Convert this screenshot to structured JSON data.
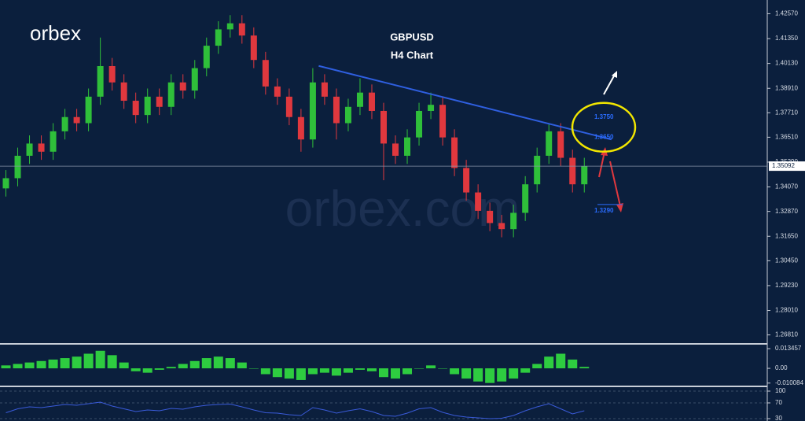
{
  "brand": "orbex",
  "watermark": "orbex.com",
  "chart_data": [
    {
      "type": "candlestick",
      "title": "GBPUSD",
      "subtitle": "H4 Chart",
      "up_color": "#2fbf3a",
      "down_color": "#e0383e",
      "xlim": [
        -0.5,
        64.5
      ],
      "ylim": [
        1.2637,
        1.4305
      ],
      "yticks": [
        {
          "value": 1.4257,
          "label": "1.42570"
        },
        {
          "value": 1.4135,
          "label": "1.41350"
        },
        {
          "value": 1.4013,
          "label": "1.40130"
        },
        {
          "value": 1.3891,
          "label": "1.38910"
        },
        {
          "value": 1.3771,
          "label": "1.37710"
        },
        {
          "value": 1.3651,
          "label": "1.36510"
        },
        {
          "value": 1.3529,
          "label": "1.35290"
        },
        {
          "value": 1.3407,
          "label": "1.34070"
        },
        {
          "value": 1.3287,
          "label": "1.32870"
        },
        {
          "value": 1.3165,
          "label": "1.31650"
        },
        {
          "value": 1.3045,
          "label": "1.30450"
        },
        {
          "value": 1.2923,
          "label": "1.29230"
        },
        {
          "value": 1.2801,
          "label": "1.28010"
        },
        {
          "value": 1.2681,
          "label": "1.26810"
        }
      ],
      "last_price": 1.35092,
      "open": [
        1.34,
        1.345,
        1.356,
        1.362,
        1.358,
        1.368,
        1.375,
        1.372,
        1.385,
        1.4,
        1.392,
        1.383,
        1.376,
        1.385,
        1.38,
        1.392,
        1.388,
        1.399,
        1.41,
        1.418,
        1.421,
        1.415,
        1.403,
        1.39,
        1.385,
        1.375,
        1.364,
        1.392,
        1.385,
        1.372,
        1.38,
        1.387,
        1.378,
        1.362,
        1.356,
        1.365,
        1.378,
        1.381,
        1.365,
        1.35,
        1.338,
        1.329,
        1.323,
        1.32,
        1.328,
        1.342,
        1.356,
        1.368,
        1.355,
        1.342
      ],
      "high": [
        1.349,
        1.36,
        1.366,
        1.366,
        1.372,
        1.379,
        1.379,
        1.389,
        1.414,
        1.404,
        1.396,
        1.387,
        1.389,
        1.389,
        1.396,
        1.396,
        1.403,
        1.414,
        1.422,
        1.425,
        1.425,
        1.419,
        1.407,
        1.394,
        1.389,
        1.379,
        1.399,
        1.396,
        1.389,
        1.384,
        1.394,
        1.391,
        1.382,
        1.366,
        1.369,
        1.382,
        1.387,
        1.385,
        1.369,
        1.354,
        1.342,
        1.333,
        1.327,
        1.332,
        1.346,
        1.36,
        1.372,
        1.372,
        1.359,
        1.355
      ],
      "low": [
        1.336,
        1.341,
        1.352,
        1.354,
        1.354,
        1.364,
        1.368,
        1.368,
        1.381,
        1.388,
        1.379,
        1.372,
        1.372,
        1.376,
        1.376,
        1.384,
        1.384,
        1.395,
        1.406,
        1.414,
        1.411,
        1.399,
        1.386,
        1.381,
        1.371,
        1.358,
        1.36,
        1.381,
        1.364,
        1.368,
        1.376,
        1.374,
        1.344,
        1.352,
        1.352,
        1.361,
        1.374,
        1.361,
        1.346,
        1.334,
        1.325,
        1.319,
        1.316,
        1.316,
        1.324,
        1.338,
        1.352,
        1.351,
        1.338,
        1.338
      ],
      "close": [
        1.345,
        1.356,
        1.362,
        1.358,
        1.368,
        1.375,
        1.372,
        1.385,
        1.4,
        1.392,
        1.383,
        1.376,
        1.385,
        1.38,
        1.392,
        1.388,
        1.399,
        1.41,
        1.418,
        1.421,
        1.415,
        1.403,
        1.39,
        1.385,
        1.375,
        1.364,
        1.392,
        1.385,
        1.372,
        1.38,
        1.387,
        1.378,
        1.362,
        1.356,
        1.365,
        1.378,
        1.381,
        1.365,
        1.35,
        1.338,
        1.329,
        1.323,
        1.32,
        1.328,
        1.342,
        1.356,
        1.368,
        1.355,
        1.342,
        1.3509
      ],
      "trendline": {
        "x": [
          26.5,
          51.3
        ],
        "y": [
          1.4001,
          1.364
        ],
        "color": "#2f5fe0"
      },
      "levels": [
        {
          "value": 1.375,
          "label": "1.3750"
        },
        {
          "value": 1.365,
          "label": "1.3650"
        },
        {
          "value": 1.329,
          "label": "1.3290"
        }
      ],
      "level_color": "#2a6cff"
    },
    {
      "type": "bar",
      "color": "#2ecc40",
      "ylim": [
        -0.0118,
        0.0151
      ],
      "yticks": [
        0.013457,
        {
          "value": 0,
          "label": "0.00"
        },
        -0.010084
      ],
      "values": [
        0.002,
        0.003,
        0.004,
        0.005,
        0.006,
        0.007,
        0.008,
        0.01,
        0.012,
        0.009,
        0.004,
        -0.002,
        -0.003,
        -0.001,
        0.001,
        0.003,
        0.005,
        0.007,
        0.008,
        0.007,
        0.004,
        0.0,
        -0.004,
        -0.006,
        -0.007,
        -0.008,
        -0.004,
        -0.003,
        -0.005,
        -0.003,
        -0.001,
        -0.002,
        -0.006,
        -0.007,
        -0.004,
        0.0,
        0.002,
        0.0,
        -0.004,
        -0.007,
        -0.009,
        -0.01,
        -0.009,
        -0.007,
        -0.003,
        0.003,
        0.008,
        0.01,
        0.006,
        0.001
      ]
    },
    {
      "type": "line",
      "color": "#3a5bd9",
      "ylim": [
        24,
        108
      ],
      "yticks": [
        100,
        70,
        30
      ],
      "values": [
        45,
        55,
        60,
        58,
        62,
        66,
        64,
        68,
        72,
        62,
        55,
        48,
        52,
        50,
        56,
        54,
        60,
        64,
        66,
        67,
        60,
        52,
        45,
        44,
        40,
        38,
        58,
        52,
        44,
        50,
        55,
        48,
        38,
        36,
        44,
        55,
        58,
        46,
        38,
        34,
        32,
        30,
        31,
        38,
        50,
        60,
        68,
        55,
        42,
        50
      ]
    }
  ]
}
